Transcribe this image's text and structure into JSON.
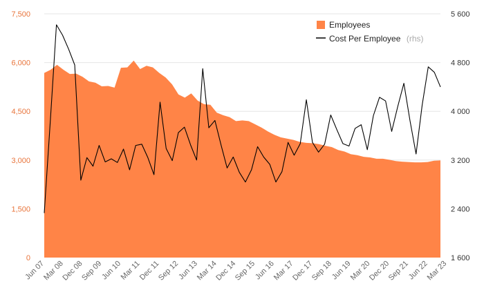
{
  "chart_data": {
    "type": "area+line",
    "title": "",
    "left_axis": {
      "ylim": [
        0,
        7500
      ],
      "ticks": [
        0,
        1500,
        3000,
        4500,
        6000,
        7500
      ],
      "tick_labels": [
        "0",
        "1,500",
        "3,000",
        "4,500",
        "6,000",
        "7,500"
      ],
      "color": "#e8743b"
    },
    "right_axis": {
      "ylim": [
        1600,
        5600
      ],
      "ticks": [
        1600,
        2400,
        3200,
        4000,
        4800,
        5600
      ],
      "tick_labels": [
        "1 600",
        "2 400",
        "3 200",
        "4 000",
        "4 800",
        "5 600"
      ]
    },
    "x_tick_labels": [
      "Jun 07",
      "Mar 08",
      "Dec 08",
      "Sep 09",
      "Jun 10",
      "Mar 11",
      "Dec 11",
      "Sep 12",
      "Jun 13",
      "Mar 14",
      "Dec 14",
      "Sep 15",
      "Jun 16",
      "Mar 17",
      "Dec 17",
      "Sep 18",
      "Jun 19",
      "Mar 20",
      "Dec 20",
      "Sep 21",
      "Jun 22",
      "Mar 23"
    ],
    "quarters_per_tick": 3,
    "series": [
      {
        "name": "Employees",
        "type": "area",
        "axis": "left",
        "color": "#ff8447",
        "values": [
          5680,
          5780,
          5930,
          5780,
          5650,
          5660,
          5560,
          5420,
          5380,
          5270,
          5280,
          5230,
          5840,
          5850,
          6060,
          5800,
          5900,
          5850,
          5680,
          5540,
          5330,
          5020,
          4920,
          5050,
          4830,
          4720,
          4700,
          4460,
          4380,
          4320,
          4200,
          4220,
          4200,
          4100,
          4000,
          3880,
          3780,
          3700,
          3660,
          3620,
          3560,
          3530,
          3520,
          3490,
          3440,
          3400,
          3310,
          3260,
          3180,
          3150,
          3100,
          3080,
          3040,
          3040,
          3010,
          2970,
          2950,
          2940,
          2930,
          2930,
          2940,
          2980,
          2990
        ]
      },
      {
        "name": "Cost Per Employee",
        "name_suffix": "(rhs)",
        "type": "line",
        "axis": "right",
        "color": "#000000",
        "values": [
          2330,
          3850,
          5420,
          5250,
          5020,
          4760,
          2870,
          3240,
          3100,
          3440,
          3170,
          3220,
          3160,
          3380,
          3040,
          3440,
          3460,
          3240,
          2960,
          4150,
          3390,
          3190,
          3650,
          3740,
          3450,
          3200,
          4700,
          3730,
          3850,
          3450,
          3070,
          3250,
          3000,
          2840,
          3040,
          3420,
          3250,
          3130,
          2840,
          3010,
          3490,
          3280,
          3470,
          4190,
          3490,
          3330,
          3460,
          3940,
          3700,
          3470,
          3430,
          3720,
          3780,
          3370,
          3930,
          4230,
          4170,
          3670,
          4080,
          4460,
          3850,
          3300,
          4100,
          4730,
          4640,
          4400
        ]
      }
    ],
    "legend": {
      "placement": "top-right"
    },
    "grid": true
  }
}
